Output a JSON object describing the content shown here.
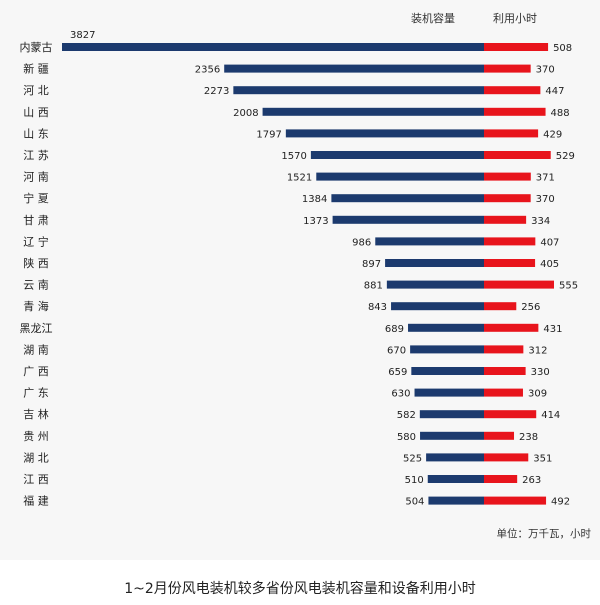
{
  "chart_data": {
    "type": "bar",
    "series": [
      {
        "name": "装机容量",
        "color": "#1c3a6e",
        "values": [
          3827,
          2356,
          2273,
          2008,
          1797,
          1570,
          1521,
          1384,
          1373,
          986,
          897,
          881,
          843,
          689,
          670,
          659,
          630,
          582,
          580,
          525,
          510,
          504
        ]
      },
      {
        "name": "利用小时",
        "color": "#e8141c",
        "values": [
          508,
          370,
          447,
          488,
          429,
          529,
          371,
          370,
          334,
          407,
          405,
          555,
          256,
          431,
          312,
          330,
          309,
          414,
          238,
          351,
          263,
          492
        ]
      }
    ],
    "categories": [
      "内蒙古",
      "新 疆",
      "河 北",
      "山 西",
      "山 东",
      "江 苏",
      "河 南",
      "宁 夏",
      "甘 肃",
      "辽 宁",
      "陕 西",
      "云 南",
      "青 海",
      "黑龙江",
      "湖 南",
      "广 西",
      "广 东",
      "吉 林",
      "贵 州",
      "湖 北",
      "江 西",
      "福 建"
    ],
    "unit_note": "单位：万千瓦，小时",
    "orientation": "horizontal-diverging"
  },
  "caption": "1~2月份风电装机较多省份风电装机容量和设备利用小时"
}
